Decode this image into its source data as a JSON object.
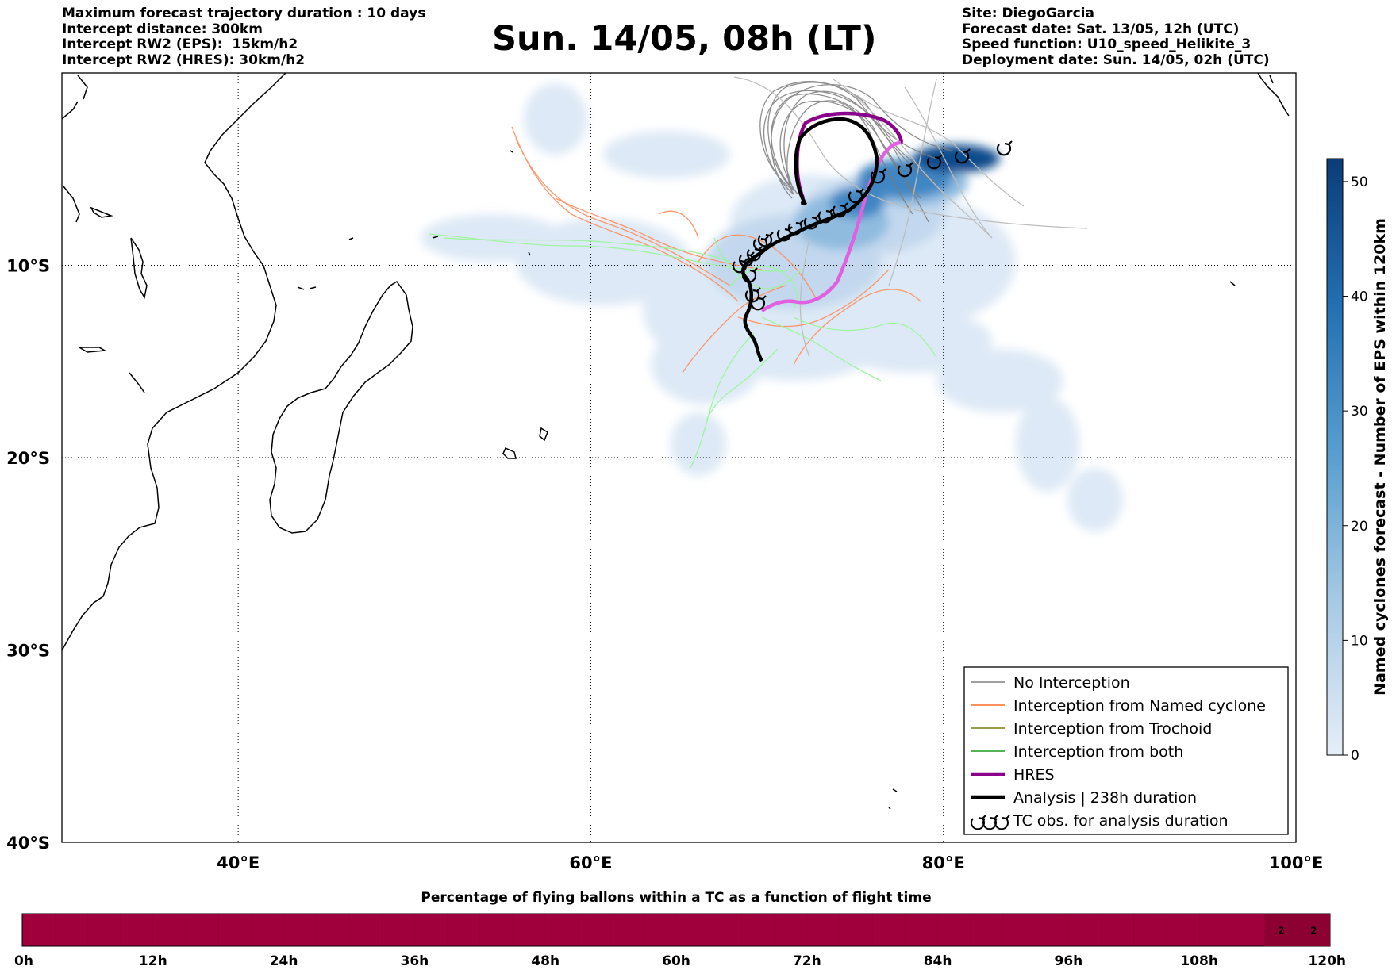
{
  "header": {
    "left_lines": [
      "Maximum forecast trajectory duration : 10 days",
      "Intercept distance: 300km",
      "Intercept RW2 (EPS):  15km/h2",
      "Intercept RW2 (HRES): 30km/h2"
    ],
    "title": "Sun. 14/05, 08h (LT)",
    "right_lines": [
      "Site: DiegoGarcia",
      "Forecast date: Sat. 13/05, 12h (UTC)",
      "Speed function: U10_speed_Helikite_3",
      "Deployment date: Sun. 14/05, 02h (UTC)"
    ]
  },
  "map": {
    "lon_ticks": [
      "40°E",
      "60°E",
      "80°E",
      "100°E"
    ],
    "lat_ticks": [
      "10°S",
      "20°S",
      "30°S",
      "40°S"
    ],
    "site_marker_lonlat": [
      72.4,
      -7.3
    ]
  },
  "colorbar": {
    "label": "Named cyclones forecast - Number of EPS within 120km",
    "ticks": [
      "0",
      "10",
      "20",
      "30",
      "40",
      "50"
    ],
    "max": 52
  },
  "legend": {
    "items": [
      {
        "label": "No Interception",
        "color": "#808080",
        "width": 1.5,
        "kind": "line"
      },
      {
        "label": "Interception from Named cyclone",
        "color": "#ff6a2a",
        "width": 1.5,
        "kind": "line"
      },
      {
        "label": "Interception from Trochoid",
        "color": "#7a7a10",
        "width": 1.5,
        "kind": "line"
      },
      {
        "label": "Interception from both",
        "color": "#1f9a1f",
        "width": 1.5,
        "kind": "line"
      },
      {
        "label": "HRES",
        "color": "#8b008b",
        "width": 4.5,
        "kind": "line"
      },
      {
        "label": "Analysis | 238h duration",
        "color": "#000000",
        "width": 4.5,
        "kind": "line"
      },
      {
        "label": "TC obs. for analysis duration",
        "color": "#000000",
        "width": 2,
        "kind": "tc",
        "symbol": "ʊʊʊ"
      }
    ]
  },
  "timebar": {
    "title": "Percentage of flying ballons within a TC as a function of flight time",
    "ticks": [
      "0h",
      "12h",
      "24h",
      "36h",
      "48h",
      "60h",
      "72h",
      "84h",
      "96h",
      "108h",
      "120h"
    ],
    "bar_color": "#a0003c",
    "cell_labels": [
      "2",
      "2"
    ],
    "cell_color": "#8c0032"
  }
}
